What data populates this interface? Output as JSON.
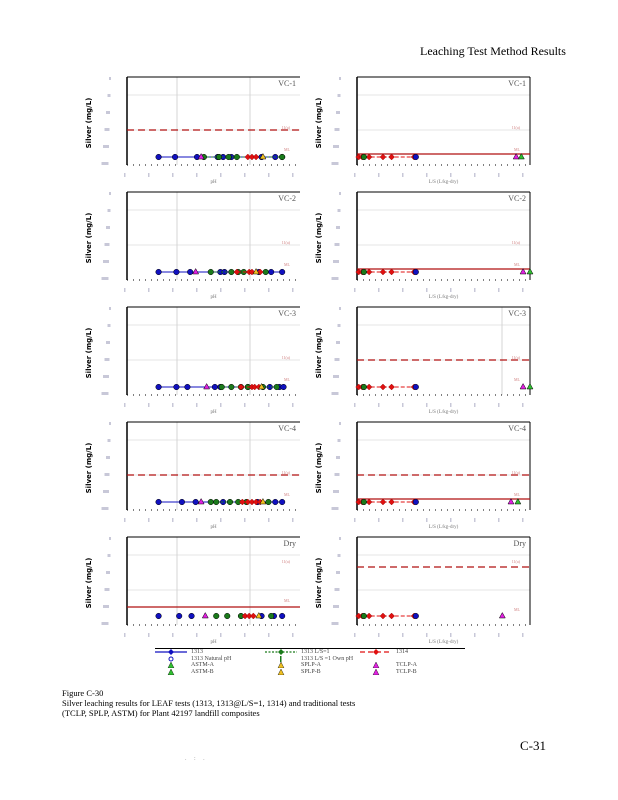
{
  "header": {
    "title": "Leaching Test Method Results"
  },
  "colors": {
    "lf1313": "#1010c0",
    "lf1313ls": "#1a7a1a",
    "lf1314": "#e01010",
    "limit": "#b01010",
    "grid": "#cccccc",
    "tcla": "#e020e0",
    "astm": "#30c030",
    "splp": "#f0c020"
  },
  "axis": {
    "ylabel": "Silver (mg/L)",
    "xlabel_ph": "pH",
    "xlabel_ls": "L/S (L/kg-dry)",
    "line_label_dashed": "11(a)",
    "line_label_solid": "ML"
  },
  "chart_data": [
    {
      "type": "scatter",
      "title": "VC-1",
      "xaxis": "pH",
      "xlim": [
        0,
        14
      ],
      "limit_lines": {
        "dashed": true,
        "solid": false
      },
      "series": [
        {
          "name": "1313",
          "x": [
            2.8,
            4,
            5.6,
            7.1,
            7.5,
            8.1,
            10.3,
            11.3,
            11.8
          ]
        },
        {
          "name": "1313 L/S=1",
          "x": [
            6.1,
            7.2,
            7.9,
            8.5,
            11.8
          ]
        },
        {
          "name": "1314",
          "x": [
            9.3,
            9.6,
            9.9
          ]
        },
        {
          "name": "TCLP",
          "x": [
            5.9
          ]
        },
        {
          "name": "SPLP",
          "x": [
            10.4
          ]
        }
      ]
    },
    {
      "type": "scatter",
      "title": "VC-1",
      "xaxis": "L/S",
      "xlim": [
        0,
        10
      ],
      "limit_lines": {
        "dashed": false,
        "solid": true
      },
      "series": [
        {
          "name": "1314",
          "x": [
            0.1,
            0.3,
            0.7,
            1.5,
            2.0,
            3.3
          ]
        },
        {
          "name": "1313 L/S=1",
          "x": [
            0.4
          ]
        },
        {
          "name": "1313",
          "x": [
            3.4
          ]
        },
        {
          "name": "TCLP",
          "x": [
            9.2
          ]
        },
        {
          "name": "ASTM",
          "x": [
            9.5
          ]
        }
      ]
    },
    {
      "type": "scatter",
      "title": "VC-2",
      "xaxis": "pH",
      "xlim": [
        0,
        14
      ],
      "limit_lines": {
        "dashed": false,
        "solid": false
      },
      "series": [
        {
          "name": "1313",
          "x": [
            2.8,
            4.1,
            5.1,
            7.3,
            7.6,
            10.1,
            11.0,
            11.8
          ]
        },
        {
          "name": "1313 L/S=1",
          "x": [
            6.6,
            8.1,
            8.6,
            9.0,
            10.6
          ]
        },
        {
          "name": "1314",
          "x": [
            8.5,
            9.4,
            9.6,
            10.2
          ]
        },
        {
          "name": "TCLP",
          "x": [
            5.5
          ]
        },
        {
          "name": "SPLP",
          "x": [
            9.9
          ]
        }
      ]
    },
    {
      "type": "scatter",
      "title": "VC-2",
      "xaxis": "L/S",
      "xlim": [
        0,
        10
      ],
      "limit_lines": {
        "dashed": false,
        "solid": true
      },
      "series": [
        {
          "name": "1314",
          "x": [
            0.1,
            0.3,
            0.7,
            1.5,
            2.0,
            3.3
          ]
        },
        {
          "name": "1313 L/S=1",
          "x": [
            0.4
          ]
        },
        {
          "name": "1313",
          "x": [
            3.4
          ]
        },
        {
          "name": "TCLP",
          "x": [
            9.6
          ]
        },
        {
          "name": "ASTM",
          "x": [
            10.0
          ]
        }
      ]
    },
    {
      "type": "scatter",
      "title": "VC-3",
      "xaxis": "pH",
      "xlim": [
        0,
        14
      ],
      "limit_lines": {
        "dashed": false,
        "solid": false
      },
      "series": [
        {
          "name": "1313",
          "x": [
            2.8,
            4.1,
            4.9,
            6.9,
            7.3,
            9.3,
            10.9,
            11.6,
            11.9
          ]
        },
        {
          "name": "1313 L/S=1",
          "x": [
            7.4,
            8.1,
            8.8,
            9.3,
            10.4,
            11.4
          ]
        },
        {
          "name": "1314",
          "x": [
            8.8,
            9.6,
            9.8,
            10.1
          ]
        },
        {
          "name": "TCLP",
          "x": [
            6.3
          ]
        },
        {
          "name": "SPLP",
          "x": [
            10.3
          ]
        }
      ]
    },
    {
      "type": "scatter",
      "title": "VC-3",
      "xaxis": "L/S",
      "xlim": [
        0,
        10
      ],
      "limit_lines": {
        "dashed": true,
        "solid": false
      },
      "series": [
        {
          "name": "1314",
          "x": [
            0.1,
            0.3,
            0.7,
            1.5,
            2.0,
            3.3
          ]
        },
        {
          "name": "1313 L/S=1",
          "x": [
            0.4
          ]
        },
        {
          "name": "1313",
          "x": [
            3.4
          ]
        },
        {
          "name": "TCLP",
          "x": [
            9.6
          ]
        },
        {
          "name": "ASTM",
          "x": [
            10.0
          ]
        }
      ]
    },
    {
      "type": "scatter",
      "title": "VC-4",
      "xaxis": "pH",
      "xlim": [
        0,
        14
      ],
      "limit_lines": {
        "dashed": true,
        "solid": false
      },
      "series": [
        {
          "name": "1313",
          "x": [
            2.8,
            4.5,
            5.5,
            7.5,
            10.0,
            11.3,
            11.8
          ]
        },
        {
          "name": "1313 L/S=1",
          "x": [
            6.6,
            7.0,
            8.0,
            8.6,
            9.2,
            10.8
          ]
        },
        {
          "name": "1314",
          "x": [
            8.9,
            9.3,
            9.6,
            9.9,
            10.2
          ]
        },
        {
          "name": "TCLP",
          "x": [
            5.9
          ]
        },
        {
          "name": "SPLP",
          "x": [
            10.4
          ]
        }
      ]
    },
    {
      "type": "scatter",
      "title": "VC-4",
      "xaxis": "L/S",
      "xlim": [
        0,
        10
      ],
      "limit_lines": {
        "dashed": true,
        "solid": true
      },
      "series": [
        {
          "name": "1314",
          "x": [
            0.1,
            0.3,
            0.7,
            1.5,
            2.0,
            3.3
          ]
        },
        {
          "name": "1313 L/S=1",
          "x": [
            0.4
          ]
        },
        {
          "name": "1313",
          "x": [
            3.4
          ]
        },
        {
          "name": "TCLP",
          "x": [
            8.9
          ]
        },
        {
          "name": "ASTM",
          "x": [
            9.3
          ]
        }
      ]
    },
    {
      "type": "scatter",
      "title": "Dry",
      "xaxis": "pH",
      "xlim": [
        0,
        14
      ],
      "limit_lines": {
        "dashed": false,
        "solid": true
      },
      "series": [
        {
          "name": "1313",
          "x": [
            2.8,
            4.3,
            5.2,
            10.3,
            11.2,
            11.8
          ]
        },
        {
          "name": "1313 L/S=1",
          "x": [
            7.0,
            7.8,
            8.8,
            11.0
          ]
        },
        {
          "name": "1314",
          "x": [
            9.1,
            9.4,
            9.7
          ]
        },
        {
          "name": "TCLP",
          "x": [
            6.2
          ]
        },
        {
          "name": "SPLP",
          "x": [
            10.1
          ]
        }
      ]
    },
    {
      "type": "scatter",
      "title": "Dry",
      "xaxis": "L/S",
      "xlim": [
        0,
        10
      ],
      "limit_lines": {
        "dashed": true,
        "solid": false
      },
      "series": [
        {
          "name": "1314",
          "x": [
            0.1,
            0.3,
            0.7,
            1.5,
            2.0,
            3.3
          ]
        },
        {
          "name": "1313 L/S=1",
          "x": [
            0.4
          ]
        },
        {
          "name": "1313",
          "x": [
            3.4
          ]
        },
        {
          "name": "TCLP",
          "x": [
            8.4
          ]
        }
      ]
    }
  ],
  "legend": [
    {
      "label": "1313",
      "marker": "line-diamond",
      "color": "#1010c0"
    },
    {
      "label": "1313 L/S=1",
      "marker": "dashed-triangle",
      "color": "#1a7a1a"
    },
    {
      "label": "1314",
      "marker": "dash-diamond",
      "color": "#e01010"
    },
    {
      "label": "1313 Natural pH",
      "marker": "circle-open",
      "color": "#1010c0"
    },
    {
      "label": "1313  L/S =1 Own pH",
      "marker": "bar",
      "color": "#1a7a1a"
    },
    {
      "label": "ASTM-A",
      "marker": "triangle",
      "color": "#30c030"
    },
    {
      "label": "SPLP-A",
      "marker": "triangle",
      "color": "#f0c020"
    },
    {
      "label": "TCLP-A",
      "marker": "triangle",
      "color": "#e020e0"
    },
    {
      "label": "ASTM-B",
      "marker": "triangle",
      "color": "#30c030"
    },
    {
      "label": "SPLP-B",
      "marker": "triangle",
      "color": "#f0c020"
    },
    {
      "label": "TCLP-B",
      "marker": "triangle",
      "color": "#e020e0"
    }
  ],
  "caption": {
    "figure": "Figure C-30",
    "line1": "Silver leaching results for LEAF tests (1313, 1313@L/S=1, 1314) and traditional tests",
    "line2": "(TCLP, SPLP, ASTM) for Plant 42197 landfill composites"
  },
  "page_number": "C-31",
  "footer_dots": ". : ."
}
